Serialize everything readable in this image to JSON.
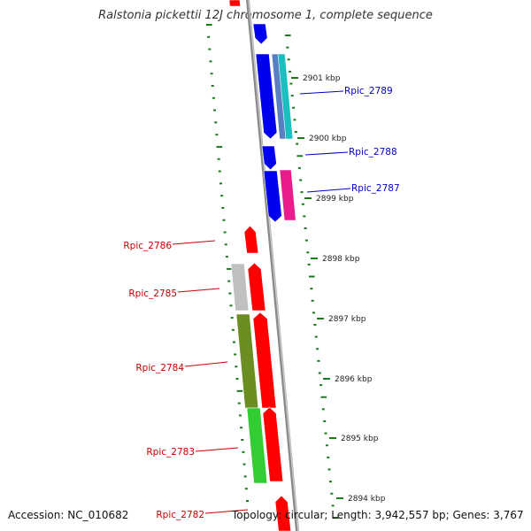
{
  "title": "Ralstonia pickettii 12J chromosome 1, complete sequence",
  "footer": {
    "accession": "Accession: NC_010682",
    "summary": "Topology: circular; Length: 3,942,557 bp; Genes: 3,767"
  },
  "colors": {
    "backbone": "#8a8a8a",
    "tick": "#1a7a1a",
    "label_forward": "#0000c8",
    "label_reverse": "#c80000"
  },
  "ticks": [
    {
      "label": "2901 kbp"
    },
    {
      "label": "2900 kbp"
    },
    {
      "label": "2899 kbp"
    },
    {
      "label": "2898 kbp"
    },
    {
      "label": "2897 kbp"
    },
    {
      "label": "2896 kbp"
    },
    {
      "label": "2895 kbp"
    },
    {
      "label": "2894 kbp"
    }
  ],
  "gene_labels": [
    {
      "text": "Rpic_2789",
      "strand": "forward"
    },
    {
      "text": "Rpic_2788",
      "strand": "forward"
    },
    {
      "text": "Rpic_2787",
      "strand": "forward"
    },
    {
      "text": "Rpic_2786",
      "strand": "reverse"
    },
    {
      "text": "Rpic_2785",
      "strand": "reverse"
    },
    {
      "text": "Rpic_2784",
      "strand": "reverse"
    },
    {
      "text": "Rpic_2783",
      "strand": "reverse"
    },
    {
      "text": "Rpic_2782",
      "strand": "reverse"
    }
  ],
  "features": [
    {
      "name": "cds-top-partial",
      "color": "#ff0000"
    },
    {
      "name": "cds-top-blue",
      "color": "#0000ee"
    },
    {
      "name": "cds-rpic-2789",
      "color": "#0000ee"
    },
    {
      "name": "cog-rpic-2789-a",
      "color": "#5a7fc0"
    },
    {
      "name": "cog-rpic-2789-b",
      "color": "#1abfbf"
    },
    {
      "name": "cds-rpic-2788",
      "color": "#0000ee"
    },
    {
      "name": "cds-rpic-2787",
      "color": "#0000ee"
    },
    {
      "name": "cog-rpic-2787",
      "color": "#e81c8c"
    },
    {
      "name": "cds-rpic-2786",
      "color": "#ff0000"
    },
    {
      "name": "cds-rpic-2785",
      "color": "#ff0000"
    },
    {
      "name": "cog-rpic-2785",
      "color": "#c0c0c0"
    },
    {
      "name": "cds-rpic-2784",
      "color": "#ff0000"
    },
    {
      "name": "cog-rpic-2784",
      "color": "#6b8e23"
    },
    {
      "name": "cds-rpic-2783",
      "color": "#ff0000"
    },
    {
      "name": "cog-rpic-2783",
      "color": "#33cc33"
    },
    {
      "name": "cds-rpic-2782",
      "color": "#ff0000"
    }
  ]
}
